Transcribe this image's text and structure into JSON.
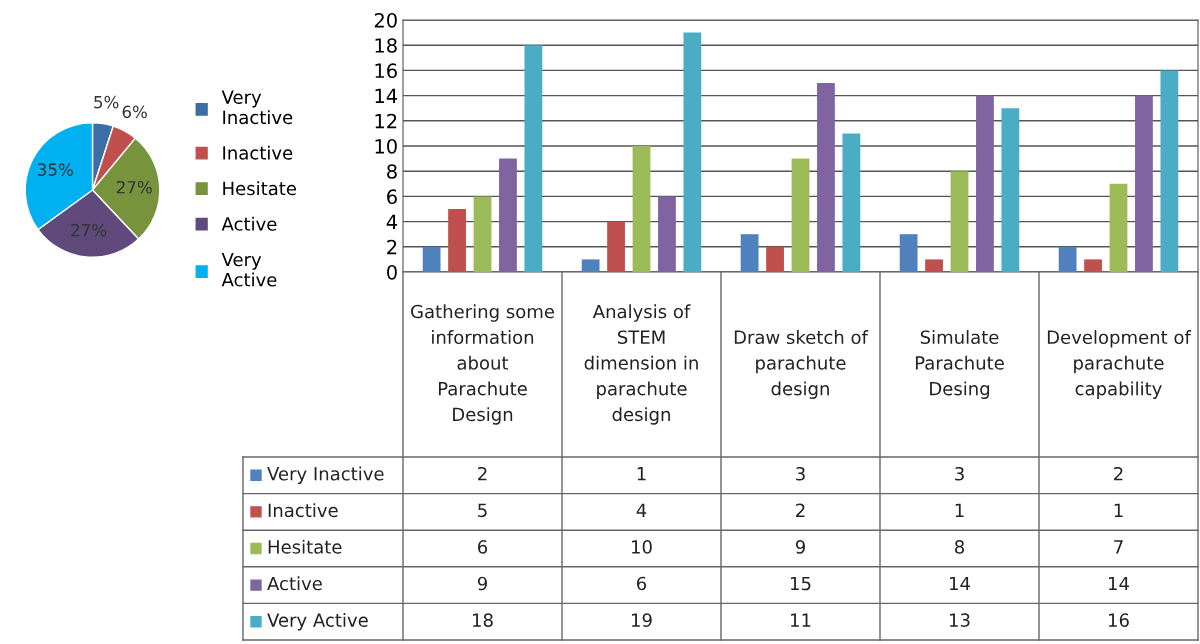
{
  "chart_data": [
    {
      "type": "pie",
      "categories": [
        "Very Inactive",
        "Inactive",
        "Hesitate",
        "Active",
        "Very Active"
      ],
      "values": [
        5,
        6,
        27,
        27,
        35
      ],
      "colors": [
        "#3a6ea5",
        "#c0504d",
        "#77933c",
        "#604a7b",
        "#00b0f0"
      ],
      "value_labels": [
        "5%",
        "6%",
        "27%",
        "27%",
        "35%"
      ],
      "legend": "right"
    },
    {
      "type": "bar",
      "categories": [
        "Gathering some information about Parachute Design",
        "Analysis of STEM dimension in parachute design",
        "Draw sketch of parachute design",
        "Simulate Parachute Desing",
        "Development of parachute capability"
      ],
      "series": [
        {
          "name": "Very Inactive",
          "color": "#4f81bd",
          "values": [
            2,
            1,
            3,
            3,
            2
          ]
        },
        {
          "name": "Inactive",
          "color": "#c0504d",
          "values": [
            5,
            4,
            2,
            1,
            1
          ]
        },
        {
          "name": "Hesitate",
          "color": "#9bbb59",
          "values": [
            6,
            10,
            9,
            8,
            7
          ]
        },
        {
          "name": "Active",
          "color": "#8064a2",
          "values": [
            9,
            6,
            15,
            14,
            14
          ]
        },
        {
          "name": "Very Active",
          "color": "#4bacc6",
          "values": [
            18,
            19,
            11,
            13,
            16
          ]
        }
      ],
      "ylim": [
        0,
        20
      ],
      "yticks": [
        0,
        2,
        4,
        6,
        8,
        10,
        12,
        14,
        16,
        18,
        20
      ],
      "grid": "y",
      "data_labels": true,
      "legend": "bottom"
    }
  ]
}
